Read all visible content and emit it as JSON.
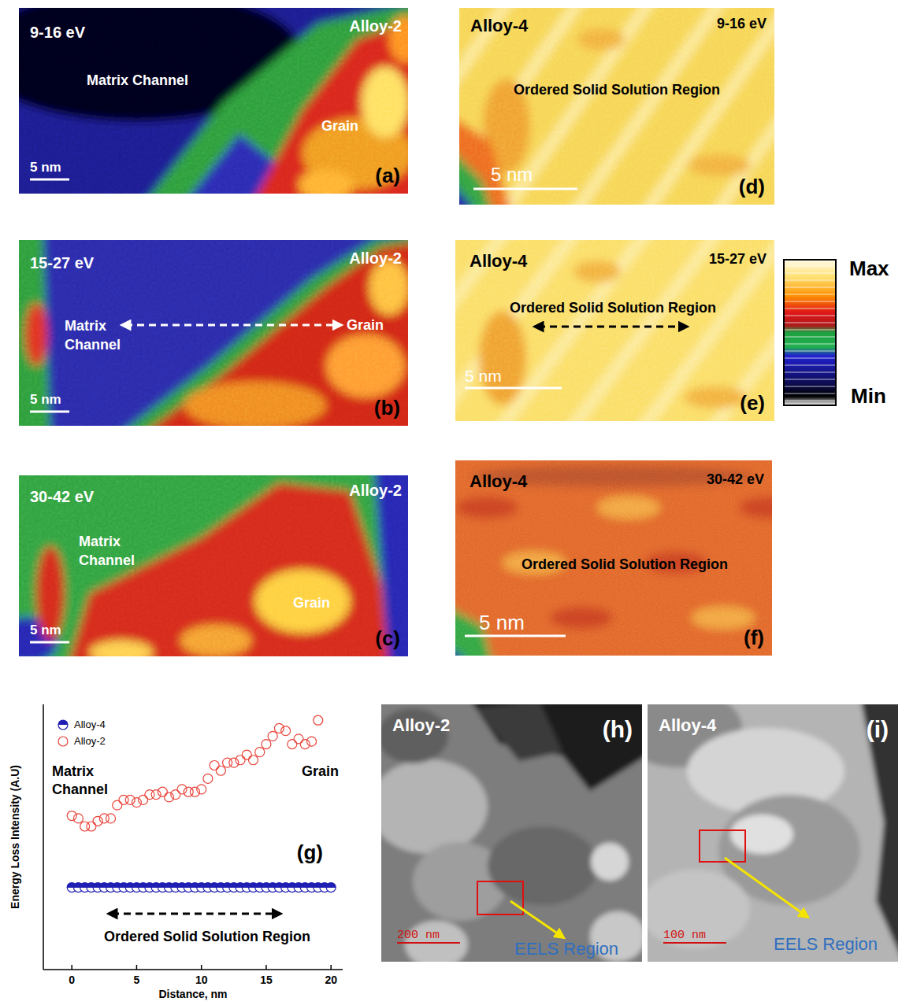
{
  "maps": [
    {
      "panel": "(a)",
      "alloy": "Alloy-2",
      "energy": "9-16 eV",
      "labels": [
        "Matrix Channel",
        "Grain"
      ],
      "scale_bar": "5 nm"
    },
    {
      "panel": "(b)",
      "alloy": "Alloy-2",
      "energy": "15-27 eV",
      "labels": [
        "Matrix Channel",
        "Grain"
      ],
      "scale_bar": "5 nm"
    },
    {
      "panel": "(c)",
      "alloy": "Alloy-2",
      "energy": "30-42 eV",
      "labels": [
        "Matrix Channel",
        "Grain"
      ],
      "scale_bar": "5 nm"
    },
    {
      "panel": "(d)",
      "alloy": "Alloy-4",
      "energy": "9-16 eV",
      "labels": [
        "Ordered Solid Solution Region"
      ],
      "scale_bar": "5 nm"
    },
    {
      "panel": "(e)",
      "alloy": "Alloy-4",
      "energy": "15-27 eV",
      "labels": [
        "Ordered Solid Solution Region"
      ],
      "scale_bar": "5 nm"
    },
    {
      "panel": "(f)",
      "alloy": "Alloy-4",
      "energy": "30-42 eV",
      "labels": [
        "Ordered Solid Solution Region"
      ],
      "scale_bar": "5 nm"
    }
  ],
  "colorbar": {
    "max": "Max",
    "min": "Min"
  },
  "chart_data": {
    "type": "scatter",
    "xlabel": "Distance, nm",
    "ylabel": "Energy Loss Intensity (A.U)",
    "annotations": [
      "Matrix Channel",
      "Grain",
      "Ordered Solid Solution Region",
      "(g)"
    ],
    "xlim": [
      -2.2,
      20.9
    ],
    "xticks": [
      0,
      5,
      10,
      15,
      20
    ],
    "ylim": [
      0,
      10
    ],
    "tick_labels": "x",
    "legend": "upper left",
    "series": [
      {
        "name": "Alloy-4",
        "color": "#1f1fb4",
        "marker": "half_filled_circle",
        "x": [
          0,
          0.5,
          1,
          1.5,
          2,
          2.5,
          3,
          3.5,
          4,
          4.5,
          5,
          5.5,
          6,
          6.5,
          7,
          7.5,
          8,
          8.5,
          9,
          9.5,
          10,
          10.5,
          11,
          11.5,
          12,
          12.5,
          13,
          13.5,
          14,
          14.5,
          15,
          15.5,
          16,
          16.5,
          17,
          17.5,
          18,
          18.5,
          19,
          19.5,
          20
        ],
        "values": [
          3.1,
          3.1,
          3.1,
          3.1,
          3.1,
          3.1,
          3.1,
          3.1,
          3.1,
          3.1,
          3.1,
          3.1,
          3.1,
          3.1,
          3.1,
          3.1,
          3.1,
          3.1,
          3.1,
          3.1,
          3.1,
          3.1,
          3.1,
          3.1,
          3.1,
          3.1,
          3.1,
          3.1,
          3.1,
          3.1,
          3.1,
          3.1,
          3.1,
          3.1,
          3.1,
          3.1,
          3.1,
          3.1,
          3.1,
          3.1,
          3.1
        ]
      },
      {
        "name": "Alloy-2",
        "color": "#e8453c",
        "marker": "open_circle",
        "x": [
          0,
          0.5,
          1,
          1.5,
          2,
          2.5,
          3,
          3.5,
          4,
          4.5,
          5,
          5.5,
          6,
          6.5,
          7,
          7.5,
          8,
          8.5,
          9,
          9.5,
          10,
          10.5,
          11,
          11.5,
          12,
          12.5,
          13,
          13.5,
          14,
          14.5,
          15,
          15.5,
          16,
          16.5,
          17,
          17.5,
          18,
          18.5,
          19
        ],
        "values": [
          5.8,
          5.7,
          5.4,
          5.4,
          5.6,
          5.7,
          5.7,
          6.2,
          6.4,
          6.4,
          6.3,
          6.4,
          6.6,
          6.6,
          6.7,
          6.5,
          6.6,
          6.8,
          6.7,
          6.7,
          6.8,
          7.2,
          7.7,
          7.5,
          7.8,
          7.8,
          7.9,
          8.1,
          7.9,
          8.2,
          8.5,
          8.8,
          9.1,
          9.0,
          8.5,
          8.7,
          8.5,
          8.6,
          9.4
        ]
      }
    ]
  },
  "images": [
    {
      "panel": "(h)",
      "alloy": "Alloy-2",
      "scale_bar": "200 nm",
      "label": "EELS Region"
    },
    {
      "panel": "(i)",
      "alloy": "Alloy-4",
      "scale_bar": "100 nm",
      "label": "EELS Region"
    }
  ]
}
